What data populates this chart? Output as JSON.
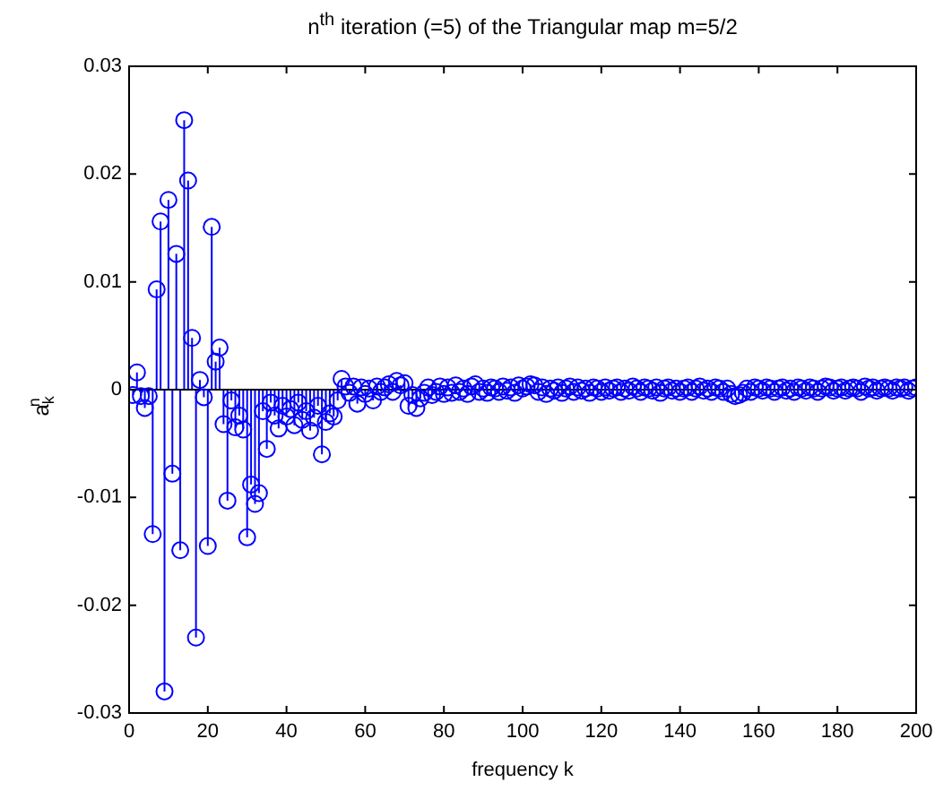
{
  "chart_data": {
    "type": "lollipop",
    "title": "n$^{th}$ iteration (=5)  of the Triangular map m=5/2",
    "xlabel": "frequency  k",
    "ylabel": "a$_{k}$$^{n}$",
    "color": "#0000ff",
    "marker": "circle",
    "x": [
      1,
      2,
      3,
      4,
      5,
      6,
      7,
      8,
      9,
      10,
      11,
      12,
      13,
      14,
      15,
      16,
      17,
      18,
      19,
      20,
      21,
      22,
      23,
      24,
      25,
      26,
      27,
      28,
      29,
      30,
      31,
      32,
      33,
      34,
      35,
      36,
      37,
      38,
      39,
      40,
      41,
      42,
      43,
      44,
      45,
      46,
      47,
      48,
      49,
      50,
      51,
      52,
      53,
      54,
      55,
      56,
      57,
      58,
      59,
      60,
      61,
      62,
      63,
      64,
      65,
      66,
      67,
      68,
      69,
      70,
      71,
      72,
      73,
      74,
      75,
      76,
      77,
      78,
      79,
      80,
      81,
      82,
      83,
      84,
      85,
      86,
      87,
      88,
      89,
      90,
      91,
      92,
      93,
      94,
      95,
      96,
      97,
      98,
      99,
      100,
      101,
      102,
      103,
      104,
      105,
      106,
      107,
      108,
      109,
      110,
      111,
      112,
      113,
      114,
      115,
      116,
      117,
      118,
      119,
      120,
      121,
      122,
      123,
      124,
      125,
      126,
      127,
      128,
      129,
      130,
      131,
      132,
      133,
      134,
      135,
      136,
      137,
      138,
      139,
      140,
      141,
      142,
      143,
      144,
      145,
      146,
      147,
      148,
      149,
      150,
      151,
      152,
      153,
      154,
      155,
      156,
      157,
      158,
      159,
      160,
      161,
      162,
      163,
      164,
      165,
      166,
      167,
      168,
      169,
      170,
      171,
      172,
      173,
      174,
      175,
      176,
      177,
      178,
      179,
      180,
      181,
      182,
      183,
      184,
      185,
      186,
      187,
      188,
      189,
      190,
      191,
      192,
      193,
      194,
      195,
      196,
      197,
      198,
      199,
      200
    ],
    "values": [
      -0.0005,
      0.0016,
      -0.0006,
      -0.0017,
      -0.0006,
      -0.0134,
      0.0093,
      0.0156,
      -0.028,
      0.0176,
      -0.0078,
      0.0126,
      -0.0149,
      0.025,
      0.0194,
      0.0048,
      -0.023,
      0.0009,
      -0.0007,
      -0.0145,
      0.0151,
      0.0026,
      0.0039,
      -0.0032,
      -0.0103,
      -0.001,
      -0.0035,
      -0.0024,
      -0.0037,
      -0.0137,
      -0.0088,
      -0.0106,
      -0.0096,
      -0.002,
      -0.0055,
      -0.0012,
      -0.0024,
      -0.0036,
      -0.0015,
      -0.0025,
      -0.0018,
      -0.0033,
      -0.0012,
      -0.0028,
      -0.002,
      -0.0038,
      -0.0026,
      -0.0015,
      -0.006,
      -0.003,
      -0.0022,
      -0.0025,
      -0.001,
      0.001,
      0.0003,
      -0.0003,
      0.0003,
      -0.0013,
      0.0002,
      -0.0004,
      0.0001,
      -0.001,
      0.0003,
      -0.0002,
      0.0002,
      0.0005,
      -0.0002,
      0.0008,
      0.0004,
      0.0006,
      -0.0015,
      -0.0005,
      -0.0017,
      -0.0008,
      -0.0003,
      0.0002,
      -0.0005,
      -0.0002,
      0.0003,
      -0.0004,
      0.0002,
      -0.0003,
      0.0004,
      -0.0002,
      0.0001,
      -0.0004,
      0.0003,
      0.0005,
      -0.0002,
      0.0001,
      -0.0003,
      0.0002,
      0.0001,
      -0.0002,
      0.0003,
      -0.0001,
      0.0002,
      -0.0003,
      0.0004,
      0.0001,
      0.0003,
      0.0005,
      0.0004,
      -0.0002,
      0.0002,
      -0.0004,
      0.0001,
      -0.0001,
      0.0002,
      -0.0003,
      0.0001,
      0.0003,
      -0.0002,
      0.0002,
      -0.0001,
      0.0001,
      -0.0003,
      0.0002,
      0.0001,
      -0.0002,
      0.0002,
      -0.0001,
      0.0001,
      0.0002,
      -0.0002,
      0.0001,
      -0.0001,
      0.0003,
      0.0001,
      -0.0002,
      0.0002,
      0.0001,
      -0.0001,
      0.0002,
      -0.0003,
      0.0001,
      0.0002,
      -0.0001,
      0.0001,
      -0.0002,
      0.0001,
      0.0002,
      -0.0002,
      0.0001,
      0.0003,
      -0.0001,
      0.0001,
      -0.0002,
      0.0002,
      0.0001,
      -0.0002,
      0.0001,
      -0.0004,
      -0.0006,
      -0.0005,
      -0.0003,
      0.0001,
      -0.0002,
      0.0002,
      0.0001,
      -0.0001,
      0.0002,
      0.0001,
      -0.0002,
      0.0001,
      0.0002,
      -0.0001,
      0.0001,
      -0.0002,
      0.0002,
      0.0001,
      -0.0001,
      0.0002,
      0.0001,
      -0.0002,
      0.0001,
      0.0003,
      0.0002,
      -0.0001,
      0.0001,
      0.0002,
      -0.0001,
      0.0001,
      0.0002,
      0.0001,
      -0.0002,
      0.0003,
      0.0001,
      0.0002,
      -0.0001,
      0.0001,
      0.0002,
      0.0001,
      -0.0001,
      0.0002,
      0.0001,
      0.0002,
      -0.0001,
      0.0001,
      0.0002
    ],
    "xlim": [
      0,
      200
    ],
    "xticks": [
      0,
      20,
      40,
      60,
      80,
      100,
      120,
      140,
      160,
      180,
      200
    ],
    "ylim": [
      -0.03,
      0.03
    ],
    "yticks": [
      -0.03,
      -0.02,
      -0.01,
      0,
      0.01,
      0.02,
      0.03
    ]
  }
}
